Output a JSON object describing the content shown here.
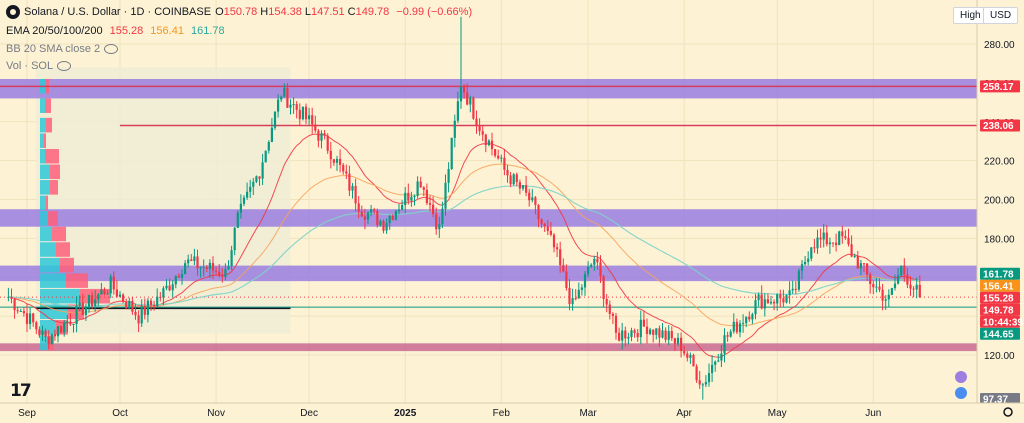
{
  "header": {
    "symbol_title": "Solana / U.S. Dollar · 1D · COINBASE",
    "ohlc": [
      {
        "label": "O",
        "value": "150.78"
      },
      {
        "label": "H",
        "value": "154.38"
      },
      {
        "label": "L",
        "value": "147.51"
      },
      {
        "label": "C",
        "value": "149.78"
      }
    ],
    "change": "−0.99 (−0.66%)",
    "ema_label": "EMA 20/50/100/200",
    "ema_values": [
      "155.28",
      "156.41",
      "161.78"
    ],
    "bb_label": "BB 20 SMA close 2",
    "vol_label": "Vol · SOL"
  },
  "toolbar": {
    "high_label": "High",
    "currency": "USD"
  },
  "colors": {
    "background": "#fdf3d4",
    "up": "#089981",
    "down": "#f23645",
    "zone_purple": "#9a7ce0",
    "zone_pink": "#c86890",
    "ema20": "#f23645",
    "ema50": "#f7a35c",
    "ema100": "#7fd3c9",
    "vp_up": "#2ec8d8",
    "vp_down": "#ff5f7a"
  },
  "chart_data": {
    "type": "candlestick",
    "symbol": "SOL/USD",
    "interval": "1D",
    "y_ticks": [
      120,
      140,
      160,
      180,
      200,
      220,
      240,
      260,
      280
    ],
    "x_ticks": [
      "Sep",
      "Oct",
      "Nov",
      "Dec",
      "2025",
      "Feb",
      "Mar",
      "Apr",
      "May",
      "Jun"
    ],
    "ylim": [
      97,
      295
    ],
    "price_path": [
      [
        "2024-08-26",
        150
      ],
      [
        "2024-09-02",
        138
      ],
      [
        "2024-09-07",
        128
      ],
      [
        "2024-09-16",
        140
      ],
      [
        "2024-09-28",
        156
      ],
      [
        "2024-10-07",
        140
      ],
      [
        "2024-10-15",
        152
      ],
      [
        "2024-10-22",
        168
      ],
      [
        "2024-11-04",
        162
      ],
      [
        "2024-11-08",
        190
      ],
      [
        "2024-11-15",
        215
      ],
      [
        "2024-11-22",
        255
      ],
      [
        "2024-12-01",
        240
      ],
      [
        "2024-12-08",
        225
      ],
      [
        "2024-12-18",
        195
      ],
      [
        "2024-12-25",
        188
      ],
      [
        "2025-01-06",
        210
      ],
      [
        "2025-01-12",
        185
      ],
      [
        "2025-01-19",
        260
      ],
      [
        "2025-01-25",
        238
      ],
      [
        "2025-02-02",
        215
      ],
      [
        "2025-02-10",
        200
      ],
      [
        "2025-02-18",
        175
      ],
      [
        "2025-02-24",
        145
      ],
      [
        "2025-03-03",
        170
      ],
      [
        "2025-03-10",
        130
      ],
      [
        "2025-03-20",
        135
      ],
      [
        "2025-03-31",
        125
      ],
      [
        "2025-04-07",
        105
      ],
      [
        "2025-04-14",
        128
      ],
      [
        "2025-04-25",
        148
      ],
      [
        "2025-05-06",
        150
      ],
      [
        "2025-05-12",
        178
      ],
      [
        "2025-05-22",
        180
      ],
      [
        "2025-05-31",
        158
      ],
      [
        "2025-06-06",
        148
      ],
      [
        "2025-06-10",
        165
      ],
      [
        "2025-06-16",
        149.78
      ]
    ],
    "extremes": {
      "high": {
        "date": "2025-01-19",
        "price": 294
      },
      "low": {
        "date": "2025-04-07",
        "price": 97
      }
    },
    "ema_periods": [
      20,
      50,
      100
    ],
    "horizontal_lines": [
      258.17,
      238.06,
      144.65
    ],
    "zones": [
      {
        "low": 252,
        "high": 262,
        "color": "purple"
      },
      {
        "low": 186,
        "high": 195,
        "color": "purple"
      },
      {
        "low": 158,
        "high": 166,
        "color": "purple"
      },
      {
        "low": 122,
        "high": 126,
        "color": "pink"
      }
    ],
    "price_labels": [
      {
        "text": "258.17",
        "bg": "#f23645",
        "fg": "#ffffff",
        "price": 258.17
      },
      {
        "text": "238.06",
        "bg": "#f23645",
        "fg": "#ffffff",
        "price": 238.06
      },
      {
        "text": "161.78",
        "bg": "#089981",
        "fg": "#ffffff",
        "price": 161.78
      },
      {
        "text": "156.41",
        "bg": "#f7931a",
        "fg": "#ffffff",
        "price": 156.41
      },
      {
        "text": "155.28",
        "bg": "#f23645",
        "fg": "#ffffff",
        "price": 155.28
      },
      {
        "text": "149.78",
        "bg": "#f23645",
        "fg": "#ffffff",
        "price": 149.78
      },
      {
        "text": "10:44:39",
        "bg": "#f23645",
        "fg": "#ffffff",
        "price": 149.78
      },
      {
        "text": "144.65",
        "bg": "#089981",
        "fg": "#ffffff",
        "price": 144.65
      },
      {
        "text": "97.37",
        "bg": "#787b86",
        "fg": "#ffffff",
        "price": 97.37
      }
    ],
    "volume_profile": [
      {
        "price": 258,
        "up": 6,
        "down": 3
      },
      {
        "price": 248,
        "up": 5,
        "down": 6
      },
      {
        "price": 238,
        "up": 6,
        "down": 6
      },
      {
        "price": 230,
        "up": 4,
        "down": 2
      },
      {
        "price": 222,
        "up": 5,
        "down": 14
      },
      {
        "price": 214,
        "up": 10,
        "down": 10
      },
      {
        "price": 206,
        "up": 10,
        "down": 8
      },
      {
        "price": 198,
        "up": 6,
        "down": 2
      },
      {
        "price": 190,
        "up": 8,
        "down": 10
      },
      {
        "price": 182,
        "up": 12,
        "down": 14
      },
      {
        "price": 174,
        "up": 16,
        "down": 14
      },
      {
        "price": 166,
        "up": 20,
        "down": 14
      },
      {
        "price": 158,
        "up": 26,
        "down": 22
      },
      {
        "price": 150,
        "up": 40,
        "down": 30
      },
      {
        "price": 142,
        "up": 28,
        "down": 16
      },
      {
        "price": 134,
        "up": 16,
        "down": 12
      },
      {
        "price": 126,
        "up": 8,
        "down": 6
      }
    ],
    "volume_profile_range": [
      "2024-09-02",
      "2024-11-25"
    ]
  }
}
